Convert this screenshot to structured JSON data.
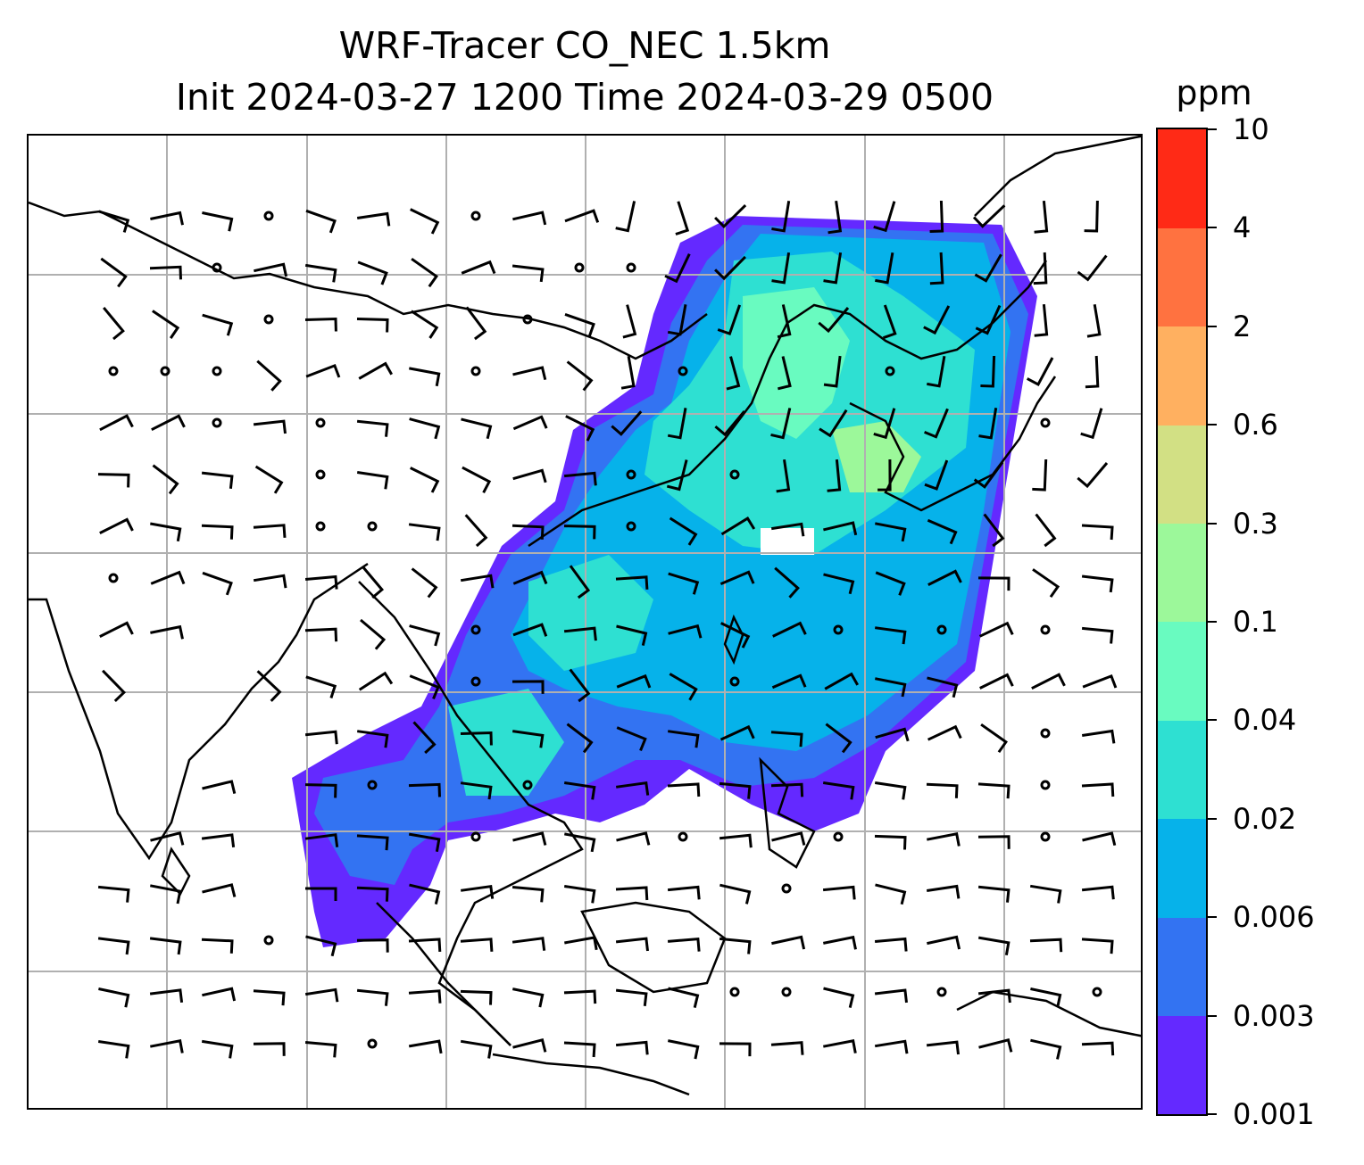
{
  "title": {
    "line1": "WRF-Tracer CO_NEC 1.5km",
    "line2": "Init 2024-03-27 1200 Time 2024-03-29 0500"
  },
  "colorbar": {
    "unit": "ppm",
    "ticks": [
      "0.001",
      "0.003",
      "0.006",
      "0.02",
      "0.04",
      "0.1",
      "0.3",
      "0.6",
      "2",
      "4",
      "10"
    ],
    "colors": [
      "#6429ff",
      "#3373f2",
      "#06b2ea",
      "#2ee0d2",
      "#69fbc0",
      "#9cf89a",
      "#d2e084",
      "#ffb060",
      "#ff7240",
      "#ff2a16"
    ]
  },
  "map": {
    "gridlines": "on",
    "overlay": "wind barbs",
    "coastline_color": "#000000",
    "gridline_color": "#b0b0b0"
  }
}
